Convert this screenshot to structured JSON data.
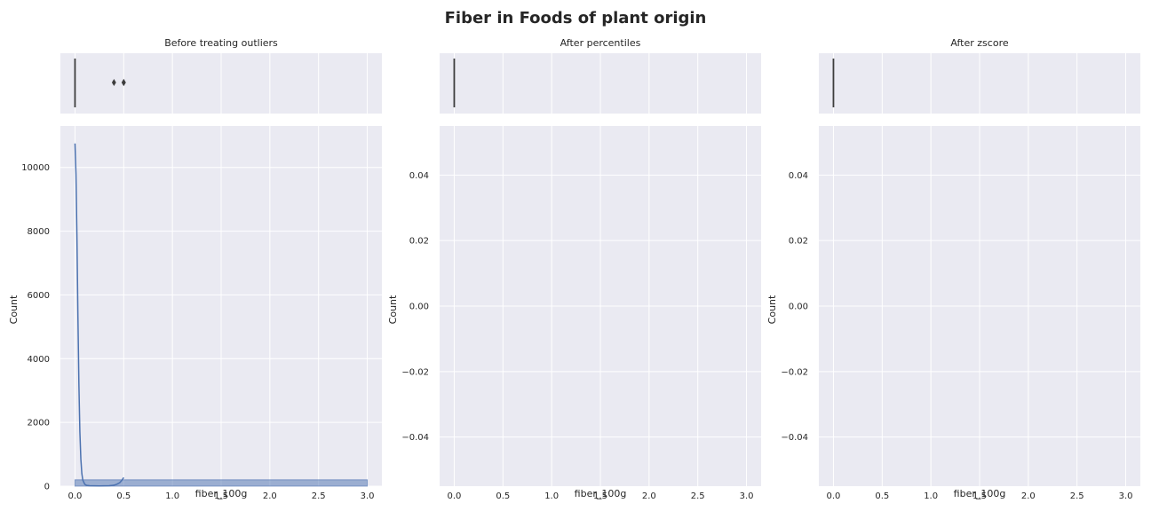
{
  "figure": {
    "title": "Fiber in Foods of plant origin"
  },
  "chart_data": [
    {
      "type": "histogram",
      "title": "Before treating outliers",
      "xlabel": "fiber_100g",
      "ylabel": "Count",
      "xlim": [
        -0.15,
        3.15
      ],
      "ylim": [
        0,
        11300
      ],
      "xticks": [
        0.0,
        0.5,
        1.0,
        1.5,
        2.0,
        2.5,
        3.0
      ],
      "xtick_labels": [
        "0.0",
        "0.5",
        "1.0",
        "1.5",
        "2.0",
        "2.5",
        "3.0"
      ],
      "yticks": [
        0,
        2000,
        4000,
        6000,
        8000,
        10000
      ],
      "ytick_labels": [
        "0",
        "2000",
        "4000",
        "6000",
        "8000",
        "10000"
      ],
      "bars": [
        {
          "x0": 0.0,
          "x1": 3.0,
          "count": 200
        }
      ],
      "kde": {
        "x": [
          0.0,
          0.01,
          0.02,
          0.03,
          0.04,
          0.05,
          0.06,
          0.07,
          0.08,
          0.1,
          0.12,
          0.15,
          0.2,
          0.25,
          0.3,
          0.35,
          0.4,
          0.43,
          0.46,
          0.48,
          0.5
        ],
        "y": [
          10750,
          9800,
          7800,
          5300,
          3200,
          1700,
          850,
          400,
          190,
          60,
          25,
          15,
          10,
          8,
          10,
          15,
          30,
          60,
          110,
          180,
          270
        ]
      },
      "boxplot": {
        "median": 0.0,
        "q1": 0.0,
        "q3": 0.0,
        "whisker_low": 0.0,
        "whisker_high": 0.0,
        "outliers": [
          0.4,
          0.5,
          0.5
        ]
      },
      "grid": true
    },
    {
      "type": "histogram",
      "title": "After percentiles",
      "xlabel": "fiber_100g",
      "ylabel": "Count",
      "xlim": [
        -0.15,
        3.15
      ],
      "ylim": [
        -0.055,
        0.055
      ],
      "xticks": [
        0.0,
        0.5,
        1.0,
        1.5,
        2.0,
        2.5,
        3.0
      ],
      "xtick_labels": [
        "0.0",
        "0.5",
        "1.0",
        "1.5",
        "2.0",
        "2.5",
        "3.0"
      ],
      "yticks": [
        -0.04,
        -0.02,
        0.0,
        0.02,
        0.04
      ],
      "ytick_labels": [
        "−0.04",
        "−0.02",
        "0.00",
        "0.02",
        "0.04"
      ],
      "bars": [],
      "boxplot": {
        "median": 0.0,
        "q1": 0.0,
        "q3": 0.0,
        "whisker_low": 0.0,
        "whisker_high": 0.0,
        "outliers": []
      },
      "grid": true
    },
    {
      "type": "histogram",
      "title": "After zscore",
      "xlabel": "fiber_100g",
      "ylabel": "Count",
      "xlim": [
        -0.15,
        3.15
      ],
      "ylim": [
        -0.055,
        0.055
      ],
      "xticks": [
        0.0,
        0.5,
        1.0,
        1.5,
        2.0,
        2.5,
        3.0
      ],
      "xtick_labels": [
        "0.0",
        "0.5",
        "1.0",
        "1.5",
        "2.0",
        "2.5",
        "3.0"
      ],
      "yticks": [
        -0.04,
        -0.02,
        0.0,
        0.02,
        0.04
      ],
      "ytick_labels": [
        "−0.04",
        "−0.02",
        "0.00",
        "0.02",
        "0.04"
      ],
      "bars": [],
      "boxplot": {
        "median": 0.0,
        "q1": 0.0,
        "q3": 0.0,
        "whisker_low": 0.0,
        "whisker_high": 0.0,
        "outliers": []
      },
      "grid": true
    }
  ],
  "colors": {
    "axes_bg": "#eaeaf2",
    "grid": "#ffffff",
    "bar_fill": "#4c72b0",
    "kde_line": "#4c72b0",
    "box_line": "#3d3d3d",
    "text": "#262626"
  }
}
